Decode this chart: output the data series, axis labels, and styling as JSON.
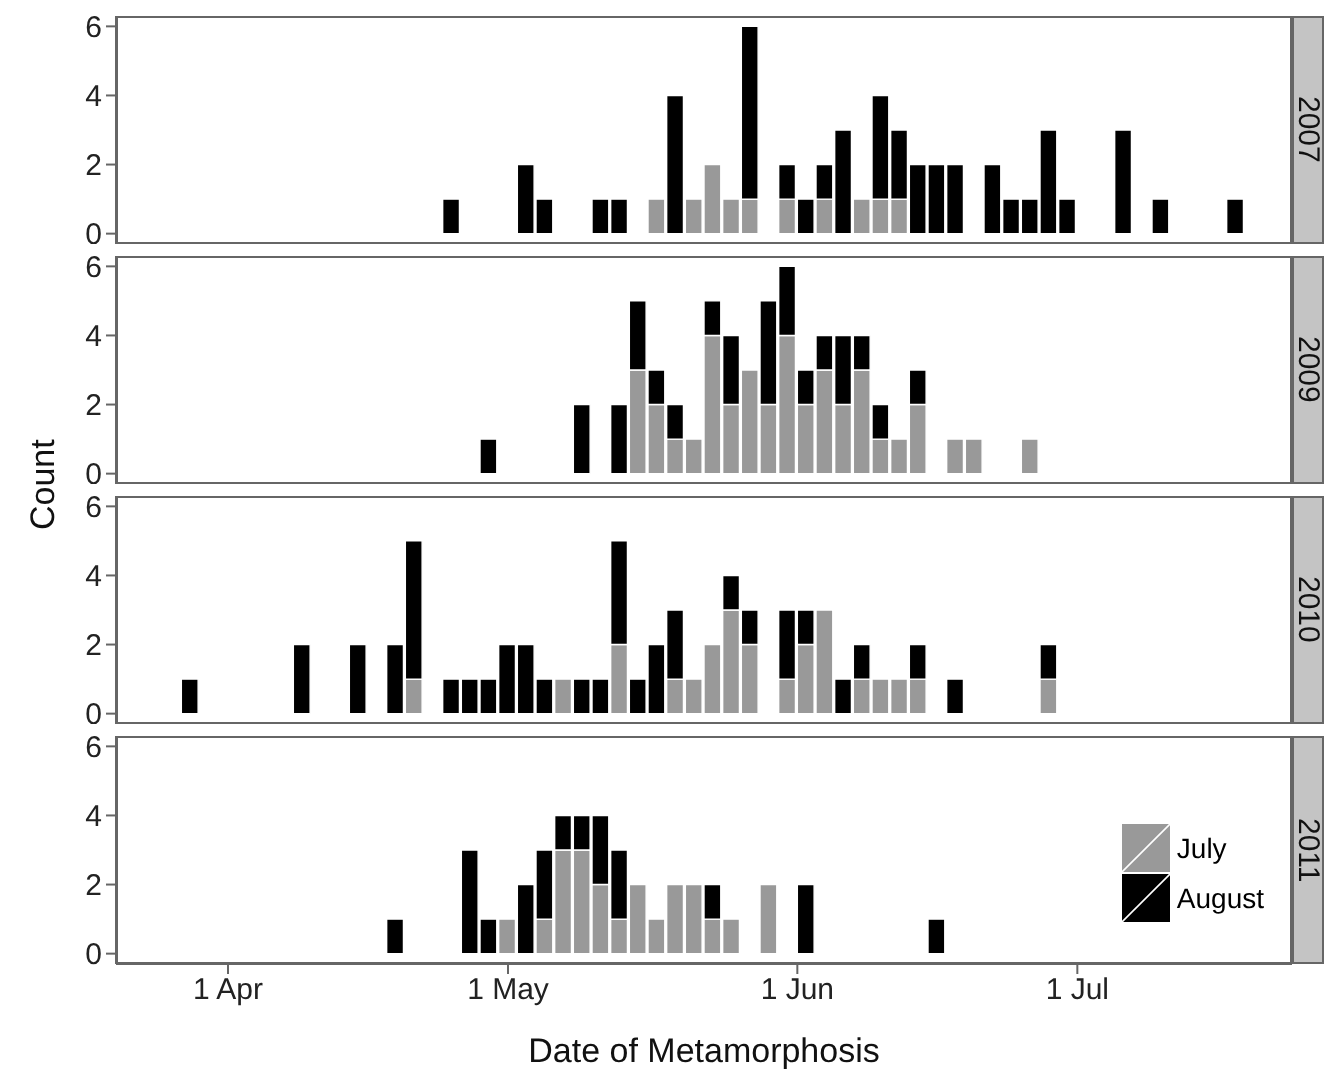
{
  "chart_data": [
    {
      "type": "bar",
      "title": "2007",
      "ylabel": "Count",
      "stacked": true,
      "tick_labels": "y",
      "xlim": [
        "--03-20",
        "--07-24"
      ],
      "ylim": [
        -0.3,
        6.3
      ],
      "yticks": [
        0,
        2,
        4,
        6
      ],
      "x": [
        "--03-28",
        "--03-30",
        "--04-01",
        "--04-03",
        "--04-05",
        "--04-07",
        "--04-09",
        "--04-11",
        "--04-13",
        "--04-15",
        "--04-17",
        "--04-19",
        "--04-21",
        "--04-23",
        "--04-25",
        "--04-27",
        "--04-29",
        "--05-01",
        "--05-03",
        "--05-05",
        "--05-07",
        "--05-09",
        "--05-11",
        "--05-13",
        "--05-15",
        "--05-17",
        "--05-19",
        "--05-21",
        "--05-23",
        "--05-25",
        "--05-27",
        "--05-29",
        "--05-31",
        "--06-02",
        "--06-04",
        "--06-06",
        "--06-08",
        "--06-10",
        "--06-12",
        "--06-14",
        "--06-16",
        "--06-18",
        "--06-20",
        "--06-22",
        "--06-24",
        "--06-26",
        "--06-28",
        "--06-30",
        "--07-02",
        "--07-04",
        "--07-06",
        "--07-08",
        "--07-10",
        "--07-12",
        "--07-14",
        "--07-16",
        "--07-18"
      ],
      "series": [
        {
          "color": "#999999",
          "values": [
            0,
            0,
            0,
            0,
            0,
            0,
            0,
            0,
            0,
            0,
            0,
            0,
            0,
            0,
            0,
            0,
            0,
            0,
            0,
            0,
            0,
            0,
            0,
            0,
            0,
            1,
            0,
            1,
            2,
            1,
            1,
            0,
            1,
            0,
            1,
            0,
            1,
            1,
            1,
            0,
            0,
            0,
            0,
            0,
            0,
            0,
            0,
            0,
            0,
            0,
            0,
            0,
            0,
            0,
            0,
            0,
            0
          ]
        },
        {
          "color": "#000000",
          "values": [
            0,
            0,
            0,
            0,
            0,
            0,
            0,
            0,
            0,
            0,
            0,
            0,
            0,
            0,
            1,
            0,
            0,
            0,
            2,
            1,
            0,
            0,
            1,
            1,
            0,
            0,
            4,
            0,
            0,
            0,
            5,
            0,
            1,
            1,
            1,
            3,
            0,
            3,
            2,
            2,
            2,
            2,
            0,
            2,
            1,
            1,
            3,
            1,
            0,
            0,
            3,
            0,
            1,
            0,
            0,
            0,
            1
          ]
        }
      ]
    },
    {
      "type": "bar",
      "title": "2009",
      "stacked": true,
      "tick_labels": "y",
      "xlim": [
        "--03-20",
        "--07-24"
      ],
      "ylim": [
        -0.3,
        6.3
      ],
      "yticks": [
        0,
        2,
        4,
        6
      ],
      "x": [
        "--03-28",
        "--03-30",
        "--04-01",
        "--04-03",
        "--04-05",
        "--04-07",
        "--04-09",
        "--04-11",
        "--04-13",
        "--04-15",
        "--04-17",
        "--04-19",
        "--04-21",
        "--04-23",
        "--04-25",
        "--04-27",
        "--04-29",
        "--05-01",
        "--05-03",
        "--05-05",
        "--05-07",
        "--05-09",
        "--05-11",
        "--05-13",
        "--05-15",
        "--05-17",
        "--05-19",
        "--05-21",
        "--05-23",
        "--05-25",
        "--05-27",
        "--05-29",
        "--05-31",
        "--06-02",
        "--06-04",
        "--06-06",
        "--06-08",
        "--06-10",
        "--06-12",
        "--06-14",
        "--06-16",
        "--06-18",
        "--06-20",
        "--06-22",
        "--06-24",
        "--06-26",
        "--06-28",
        "--06-30",
        "--07-02",
        "--07-04",
        "--07-06",
        "--07-08",
        "--07-10",
        "--07-12",
        "--07-14",
        "--07-16",
        "--07-18"
      ],
      "series": [
        {
          "color": "#999999",
          "values": [
            0,
            0,
            0,
            0,
            0,
            0,
            0,
            0,
            0,
            0,
            0,
            0,
            0,
            0,
            0,
            0,
            0,
            0,
            0,
            0,
            0,
            0,
            0,
            0,
            3,
            2,
            1,
            1,
            4,
            2,
            3,
            2,
            4,
            2,
            3,
            2,
            3,
            1,
            1,
            2,
            0,
            1,
            1,
            0,
            0,
            1,
            0,
            0,
            0,
            0,
            0,
            0,
            0,
            0,
            0,
            0,
            0
          ]
        },
        {
          "color": "#000000",
          "values": [
            0,
            0,
            0,
            0,
            0,
            0,
            0,
            0,
            0,
            0,
            0,
            0,
            0,
            0,
            0,
            0,
            1,
            0,
            0,
            0,
            0,
            2,
            0,
            2,
            2,
            1,
            1,
            0,
            1,
            2,
            0,
            3,
            2,
            1,
            1,
            2,
            1,
            1,
            0,
            1,
            0,
            0,
            0,
            0,
            0,
            0,
            0,
            0,
            0,
            0,
            0,
            0,
            0,
            0,
            0,
            0,
            0
          ]
        }
      ]
    },
    {
      "type": "bar",
      "title": "2010",
      "stacked": true,
      "tick_labels": "y",
      "xlim": [
        "--03-20",
        "--07-24"
      ],
      "ylim": [
        -0.3,
        6.3
      ],
      "yticks": [
        0,
        2,
        4,
        6
      ],
      "x": [
        "--03-28",
        "--03-30",
        "--04-01",
        "--04-03",
        "--04-05",
        "--04-07",
        "--04-09",
        "--04-11",
        "--04-13",
        "--04-15",
        "--04-17",
        "--04-19",
        "--04-21",
        "--04-23",
        "--04-25",
        "--04-27",
        "--04-29",
        "--05-01",
        "--05-03",
        "--05-05",
        "--05-07",
        "--05-09",
        "--05-11",
        "--05-13",
        "--05-15",
        "--05-17",
        "--05-19",
        "--05-21",
        "--05-23",
        "--05-25",
        "--05-27",
        "--05-29",
        "--05-31",
        "--06-02",
        "--06-04",
        "--06-06",
        "--06-08",
        "--06-10",
        "--06-12",
        "--06-14",
        "--06-16",
        "--06-18",
        "--06-20",
        "--06-22",
        "--06-24",
        "--06-26",
        "--06-28",
        "--06-30",
        "--07-02",
        "--07-04",
        "--07-06",
        "--07-08",
        "--07-10",
        "--07-12",
        "--07-14",
        "--07-16",
        "--07-18"
      ],
      "series": [
        {
          "color": "#999999",
          "values": [
            0,
            0,
            0,
            0,
            0,
            0,
            0,
            0,
            0,
            0,
            0,
            0,
            1,
            0,
            0,
            0,
            0,
            0,
            0,
            0,
            1,
            0,
            0,
            2,
            0,
            0,
            1,
            1,
            2,
            3,
            2,
            0,
            1,
            2,
            3,
            0,
            1,
            1,
            1,
            1,
            0,
            0,
            0,
            0,
            0,
            0,
            1,
            0,
            0,
            0,
            0,
            0,
            0,
            0,
            0,
            0,
            0
          ]
        },
        {
          "color": "#000000",
          "values": [
            1,
            0,
            0,
            0,
            0,
            0,
            2,
            0,
            0,
            2,
            0,
            2,
            4,
            0,
            1,
            1,
            1,
            2,
            2,
            1,
            0,
            1,
            1,
            3,
            1,
            2,
            2,
            0,
            0,
            1,
            1,
            0,
            2,
            1,
            0,
            1,
            1,
            0,
            0,
            1,
            0,
            1,
            0,
            0,
            0,
            0,
            1,
            0,
            0,
            0,
            0,
            0,
            0,
            0,
            0,
            0,
            0
          ]
        }
      ]
    },
    {
      "type": "bar",
      "title": "2011",
      "xlabel": "Date of Metamorphosis",
      "stacked": true,
      "legend": "bottom right",
      "xlim": [
        "--03-20",
        "--07-24"
      ],
      "ylim": [
        -0.3,
        6.3
      ],
      "yticks": [
        0,
        2,
        4,
        6
      ],
      "xticks": [
        {
          "value": "--04-01",
          "label": "1 Apr"
        },
        {
          "value": "--05-01",
          "label": "1 May"
        },
        {
          "value": "--06-01",
          "label": "1 Jun"
        },
        {
          "value": "--07-01",
          "label": "1 Jul"
        }
      ],
      "x": [
        "--03-28",
        "--03-30",
        "--04-01",
        "--04-03",
        "--04-05",
        "--04-07",
        "--04-09",
        "--04-11",
        "--04-13",
        "--04-15",
        "--04-17",
        "--04-19",
        "--04-21",
        "--04-23",
        "--04-25",
        "--04-27",
        "--04-29",
        "--05-01",
        "--05-03",
        "--05-05",
        "--05-07",
        "--05-09",
        "--05-11",
        "--05-13",
        "--05-15",
        "--05-17",
        "--05-19",
        "--05-21",
        "--05-23",
        "--05-25",
        "--05-27",
        "--05-29",
        "--05-31",
        "--06-02",
        "--06-04",
        "--06-06",
        "--06-08",
        "--06-10",
        "--06-12",
        "--06-14",
        "--06-16",
        "--06-18",
        "--06-20",
        "--06-22",
        "--06-24",
        "--06-26",
        "--06-28",
        "--06-30",
        "--07-02",
        "--07-04",
        "--07-06",
        "--07-08",
        "--07-10",
        "--07-12",
        "--07-14",
        "--07-16",
        "--07-18"
      ],
      "series": [
        {
          "name": "July",
          "color": "#999999",
          "values": [
            0,
            0,
            0,
            0,
            0,
            0,
            0,
            0,
            0,
            0,
            0,
            0,
            0,
            0,
            0,
            0,
            0,
            1,
            0,
            1,
            3,
            3,
            2,
            1,
            2,
            1,
            2,
            2,
            1,
            1,
            0,
            2,
            0,
            0,
            0,
            0,
            0,
            0,
            0,
            0,
            0,
            0,
            0,
            0,
            0,
            0,
            0,
            0,
            0,
            0,
            0,
            0,
            0,
            0,
            0,
            0,
            0
          ]
        },
        {
          "name": "August",
          "color": "#000000",
          "values": [
            0,
            0,
            0,
            0,
            0,
            0,
            0,
            0,
            0,
            0,
            0,
            1,
            0,
            0,
            0,
            3,
            1,
            0,
            2,
            2,
            1,
            1,
            2,
            2,
            0,
            0,
            0,
            0,
            1,
            0,
            0,
            0,
            0,
            2,
            0,
            0,
            0,
            0,
            0,
            0,
            1,
            0,
            0,
            0,
            0,
            0,
            0,
            0,
            0,
            0,
            0,
            0,
            0,
            0,
            0,
            0,
            0
          ]
        }
      ]
    }
  ]
}
